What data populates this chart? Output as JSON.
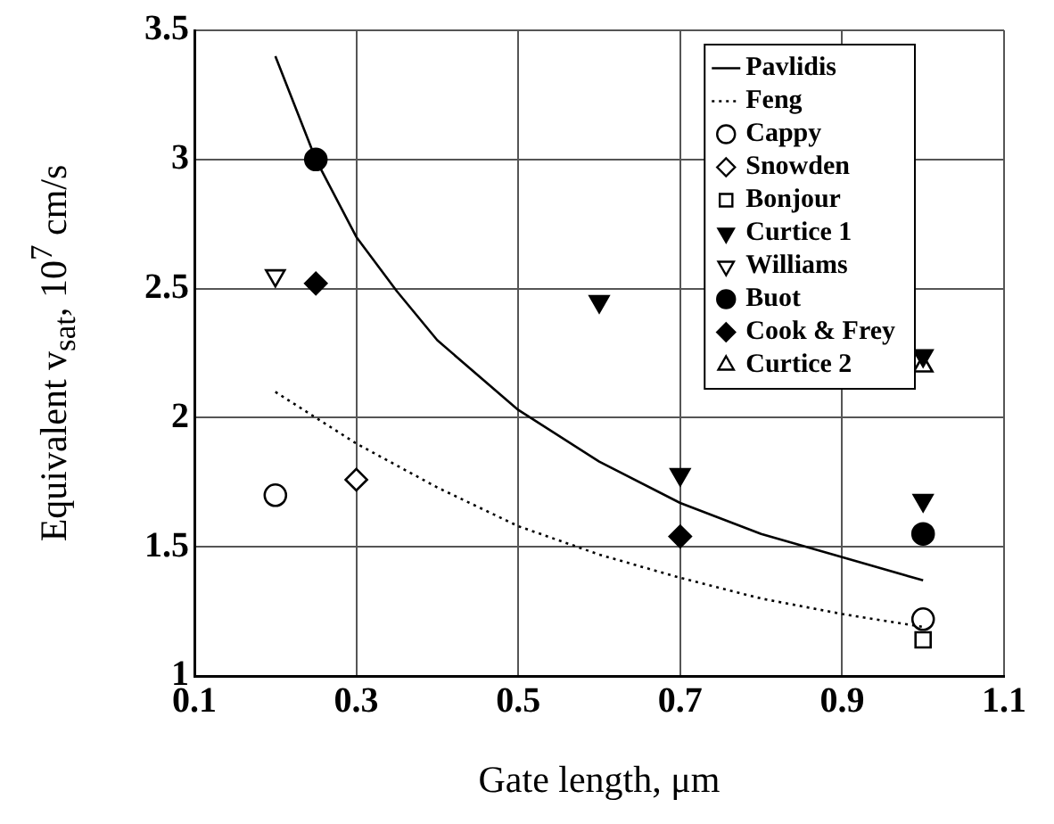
{
  "chart_data": {
    "type": "scatter",
    "xlabel": "Gate length, μm",
    "ylabel": "Equivalent v$_{sat}$, 10$^{7}$ cm/s",
    "xlim": [
      0.1,
      1.1
    ],
    "xticks": [
      0.1,
      0.3,
      0.5,
      0.7,
      0.9,
      1.1
    ],
    "ylim": [
      1,
      3.5
    ],
    "yticks": [
      1,
      1.5,
      2,
      2.5,
      3,
      3.5
    ],
    "grid": true,
    "legend": "top right",
    "series": [
      {
        "name": "Pavlidis",
        "type": "line",
        "line_style": "solid",
        "marker": "none",
        "color": "#000000",
        "x": [
          0.2,
          0.25,
          0.3,
          0.35,
          0.4,
          0.5,
          0.6,
          0.7,
          0.8,
          0.9,
          1.0
        ],
        "values": [
          3.4,
          3.0,
          2.7,
          2.49,
          2.3,
          2.03,
          1.83,
          1.67,
          1.55,
          1.46,
          1.37
        ]
      },
      {
        "name": "Feng",
        "type": "line",
        "line_style": "dotted",
        "marker": "none",
        "color": "#000000",
        "x": [
          0.2,
          0.3,
          0.4,
          0.5,
          0.6,
          0.7,
          0.8,
          0.9,
          1.0
        ],
        "values": [
          2.1,
          1.9,
          1.73,
          1.58,
          1.47,
          1.38,
          1.3,
          1.24,
          1.19
        ]
      },
      {
        "name": "Cappy",
        "marker": "circle-open",
        "color": "#000000",
        "x": [
          0.2,
          1.0
        ],
        "values": [
          1.7,
          1.22
        ]
      },
      {
        "name": "Snowden",
        "marker": "diamond-open",
        "color": "#000000",
        "x": [
          0.3
        ],
        "values": [
          1.76
        ]
      },
      {
        "name": "Bonjour",
        "marker": "square-open",
        "color": "#000000",
        "x": [
          1.0
        ],
        "values": [
          1.14
        ]
      },
      {
        "name": "Curtice 1",
        "marker": "triangle-down",
        "color": "#000000",
        "x": [
          0.6,
          0.7,
          1.0,
          1.0
        ],
        "values": [
          2.45,
          1.78,
          1.68,
          2.24
        ]
      },
      {
        "name": "Williams",
        "marker": "triangle-down-open",
        "color": "#000000",
        "x": [
          0.2
        ],
        "values": [
          2.55
        ]
      },
      {
        "name": "Buot",
        "marker": "circle",
        "color": "#000000",
        "x": [
          0.25,
          1.0
        ],
        "values": [
          3.0,
          1.55
        ]
      },
      {
        "name": "Cook & Frey",
        "marker": "diamond",
        "color": "#000000",
        "x": [
          0.25,
          0.7
        ],
        "values": [
          2.52,
          1.54
        ]
      },
      {
        "name": "Curtice 2",
        "marker": "triangle-open",
        "color": "#000000",
        "x": [
          1.0
        ],
        "values": [
          2.2
        ]
      }
    ]
  }
}
